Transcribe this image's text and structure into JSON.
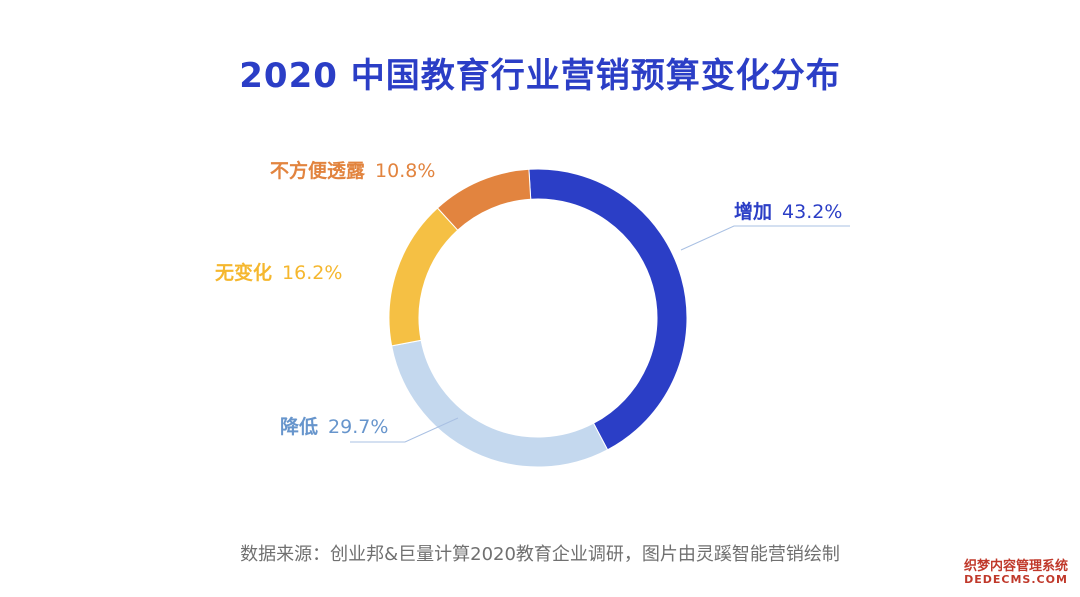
{
  "chart_data": {
    "type": "pie",
    "variant": "donut",
    "title": "2020 中国教育行业营销预算变化分布",
    "slices": [
      {
        "label": "增加",
        "value": 43.2,
        "display": "43.2%",
        "color": "#2b3ec6"
      },
      {
        "label": "降低",
        "value": 29.7,
        "display": "29.7%",
        "color": "#c4d8ee"
      },
      {
        "label": "无变化",
        "value": 16.2,
        "display": "16.2%",
        "color": "#f5c044"
      },
      {
        "label": "不方便透露",
        "value": 10.8,
        "display": "10.8%",
        "color": "#e2843f"
      }
    ],
    "label_colors": {
      "增加": "#2b3ec6",
      "降低": "#6795cc",
      "无变化": "#f5b72e",
      "不方便透露": "#e2843f"
    },
    "leader_line_color": "#a9c0e3"
  },
  "source_note": "数据来源：创业邦&巨量计算2020教育企业调研，图片由灵蹊智能营销绘制",
  "watermark": {
    "line1": "织梦内容管理系统",
    "line2": "DEDECMS.COM"
  }
}
